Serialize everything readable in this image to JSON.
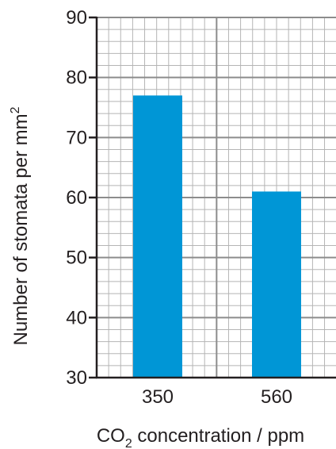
{
  "chart_data": {
    "type": "bar",
    "categories": [
      "350",
      "560"
    ],
    "values": [
      77,
      61
    ],
    "xlabel": "",
    "xlabel_parts": {
      "pre": "CO",
      "sub": "2",
      "post": " concentration / ppm"
    },
    "ylabel": "",
    "ylabel_parts": {
      "main": "Number of stomata per mm",
      "sup": "2"
    },
    "ylim": [
      30,
      90
    ],
    "yticks": [
      "30",
      "40",
      "50",
      "60",
      "70",
      "80",
      "90"
    ],
    "grid": true,
    "colors": {
      "bar": "#0096d6",
      "grid_minor": "#b5b5b5",
      "grid_major": "#8c8c8c",
      "axis": "#231f20"
    }
  }
}
